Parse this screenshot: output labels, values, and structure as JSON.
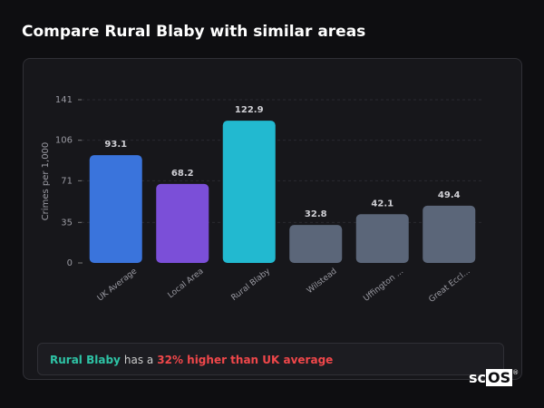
{
  "title": "Compare Rural Blaby with similar areas",
  "chart_data": {
    "type": "bar",
    "y_label": "Crimes per 1,000",
    "categories": [
      "UK Average",
      "Local Area",
      "Rural Blaby",
      "Wilstead",
      "Uffington ...",
      "Great Eccl..."
    ],
    "values": [
      93.1,
      68.2,
      122.9,
      32.8,
      42.1,
      49.4
    ],
    "colors": [
      "#3a74dc",
      "#7b4fd8",
      "#22b9d0",
      "#5b6679",
      "#5b6679",
      "#5b6679"
    ],
    "ylim": [
      0,
      141
    ],
    "yticks": [
      0,
      35,
      71,
      106,
      141
    ],
    "grid": true
  },
  "summary": {
    "area": "Rural Blaby",
    "text": "has a",
    "highlight": "32% higher than UK average"
  },
  "logo": {
    "prefix": "sc",
    "boxed": "OS",
    "mark": "®"
  }
}
